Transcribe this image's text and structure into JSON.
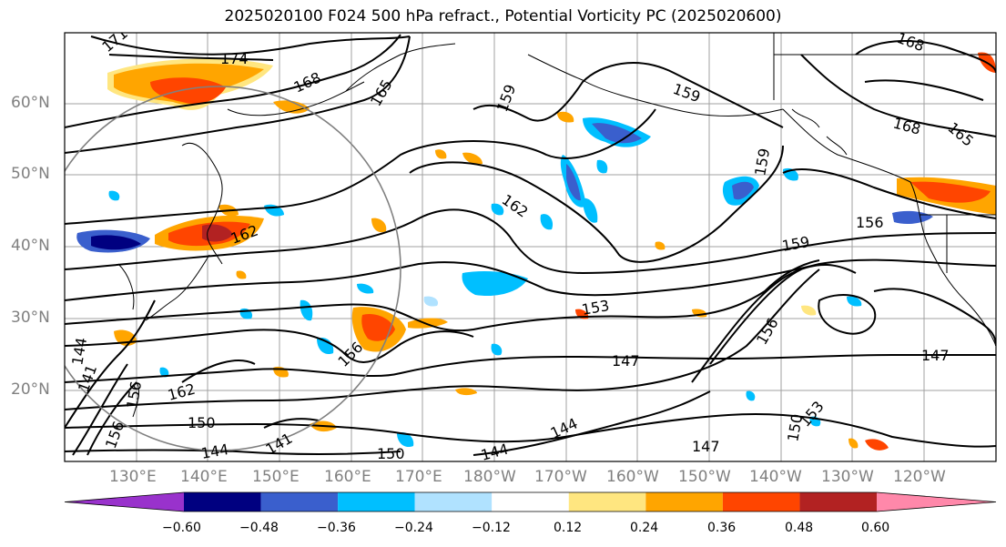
{
  "title": "2025020100 F024 500 hPa refract., Potential Vorticity PC (2025020600)",
  "lat_labels": [
    "60°N",
    "50°N",
    "40°N",
    "30°N",
    "20°N"
  ],
  "lon_labels": [
    "130°E",
    "140°E",
    "150°E",
    "160°E",
    "170°E",
    "180°W",
    "170°W",
    "160°W",
    "150°W",
    "140°W",
    "130°W",
    "120°W"
  ],
  "contour_labels": [
    "171",
    "174",
    "168",
    "165",
    "159",
    "159",
    "168",
    "165",
    "168",
    "159",
    "162",
    "156",
    "159",
    "162",
    "156",
    "153",
    "156",
    "147",
    "147",
    "144",
    "150",
    "153",
    "147",
    "162",
    "150",
    "144",
    "141",
    "150",
    "144",
    "141",
    "156",
    "144",
    "156"
  ],
  "colorbar": {
    "ticks": [
      "−0.60",
      "−0.48",
      "−0.36",
      "−0.24",
      "−0.12",
      "0.12",
      "0.24",
      "0.36",
      "0.48",
      "0.60"
    ],
    "colors": [
      "#9932cc",
      "#000080",
      "#3a5fcd",
      "#00bfff",
      "#b0e2ff",
      "#ffffff",
      "#ffe680",
      "#ffa500",
      "#ff4500",
      "#b22222",
      "#ff88aa"
    ]
  }
}
